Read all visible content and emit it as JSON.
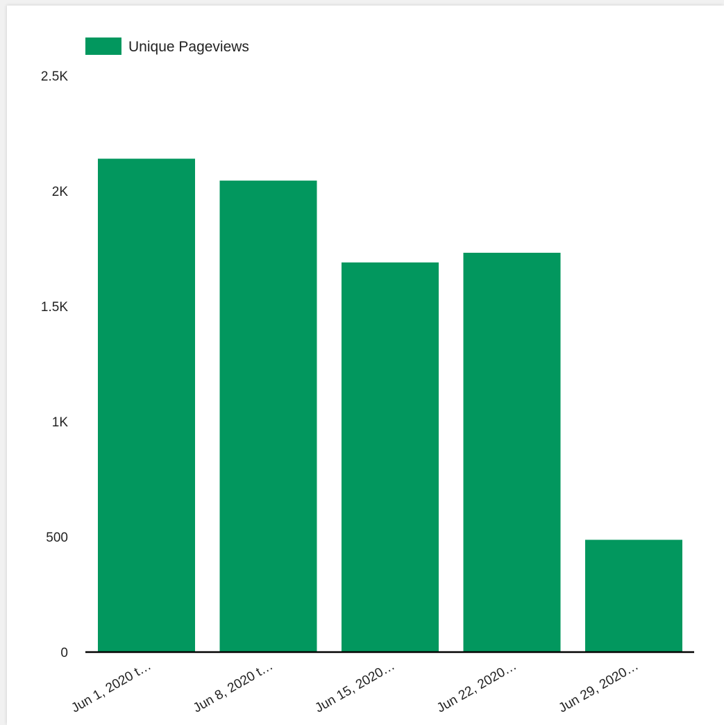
{
  "chart_data": {
    "type": "bar",
    "categories": [
      "Jun 1, 2020 t…",
      "Jun 8, 2020 t…",
      "Jun 15, 2020…",
      "Jun 22, 2020…",
      "Jun 29, 2020…"
    ],
    "series": [
      {
        "name": "Unique Pageviews",
        "color": "#02975e",
        "values": [
          2140,
          2045,
          1690,
          1732,
          487
        ]
      }
    ],
    "y_ticks": [
      "0",
      "500",
      "1K",
      "1.5K",
      "2K",
      "2.5K"
    ],
    "y_tick_values": [
      0,
      500,
      1000,
      1500,
      2000,
      2500
    ],
    "ylim": [
      0,
      2500
    ],
    "grid": false,
    "legend_position": "top-left",
    "axis_color": "#000000"
  }
}
